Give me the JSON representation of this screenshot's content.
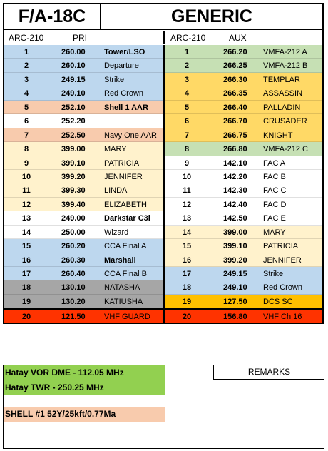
{
  "header": {
    "aircraft": "F/A-18C",
    "title": "GENERIC"
  },
  "pri": {
    "radio": "ARC-210",
    "label": "PRI"
  },
  "aux": {
    "radio": "ARC-210",
    "label": "AUX"
  },
  "pri_rows": [
    {
      "n": "1",
      "freq": "260.00",
      "name": "Tower/LSO",
      "color": "#bdd7ee",
      "bold": true
    },
    {
      "n": "2",
      "freq": "260.10",
      "name": "Departure",
      "color": "#bdd7ee",
      "bold": false
    },
    {
      "n": "3",
      "freq": "249.15",
      "name": "Strike",
      "color": "#bdd7ee",
      "bold": false
    },
    {
      "n": "4",
      "freq": "249.10",
      "name": "Red Crown",
      "color": "#bdd7ee",
      "bold": false
    },
    {
      "n": "5",
      "freq": "252.10",
      "name": "Shell 1 AAR",
      "color": "#f8cbad",
      "bold": true
    },
    {
      "n": "6",
      "freq": "252.20",
      "name": "",
      "color": "#ffffff",
      "bold": false
    },
    {
      "n": "7",
      "freq": "252.50",
      "name": "Navy One AAR",
      "color": "#f8cbad",
      "bold": false
    },
    {
      "n": "8",
      "freq": "399.00",
      "name": "MARY",
      "color": "#fff2cc",
      "bold": false
    },
    {
      "n": "9",
      "freq": "399.10",
      "name": "PATRICIA",
      "color": "#fff2cc",
      "bold": false
    },
    {
      "n": "10",
      "freq": "399.20",
      "name": "JENNIFER",
      "color": "#fff2cc",
      "bold": false
    },
    {
      "n": "11",
      "freq": "399.30",
      "name": "LINDA",
      "color": "#fff2cc",
      "bold": false
    },
    {
      "n": "12",
      "freq": "399.40",
      "name": "ELIZABETH",
      "color": "#fff2cc",
      "bold": false
    },
    {
      "n": "13",
      "freq": "249.00",
      "name": "Darkstar C3i",
      "color": "#ffffff",
      "bold": true
    },
    {
      "n": "14",
      "freq": "250.00",
      "name": "Wizard",
      "color": "#ffffff",
      "bold": false
    },
    {
      "n": "15",
      "freq": "260.20",
      "name": "CCA Final A",
      "color": "#bdd7ee",
      "bold": false
    },
    {
      "n": "16",
      "freq": "260.30",
      "name": "Marshall",
      "color": "#bdd7ee",
      "bold": true
    },
    {
      "n": "17",
      "freq": "260.40",
      "name": "CCA Final B",
      "color": "#bdd7ee",
      "bold": false
    },
    {
      "n": "18",
      "freq": "130.10",
      "name": "NATASHA",
      "color": "#a6a6a6",
      "bold": false
    },
    {
      "n": "19",
      "freq": "130.20",
      "name": "KATIUSHA",
      "color": "#a6a6a6",
      "bold": false
    },
    {
      "n": "20",
      "freq": "121.50",
      "name": "VHF GUARD",
      "color": "#ff3300",
      "bold": false
    }
  ],
  "aux_rows": [
    {
      "n": "1",
      "freq": "266.20",
      "name": "VMFA-212 A",
      "color": "#c6e0b4",
      "bold": false
    },
    {
      "n": "2",
      "freq": "266.25",
      "name": "VMFA-212 B",
      "color": "#c6e0b4",
      "bold": false
    },
    {
      "n": "3",
      "freq": "266.30",
      "name": "TEMPLAR",
      "color": "#ffd966",
      "bold": false
    },
    {
      "n": "4",
      "freq": "266.35",
      "name": "ASSASSIN",
      "color": "#ffd966",
      "bold": false
    },
    {
      "n": "5",
      "freq": "266.40",
      "name": "PALLADIN",
      "color": "#ffd966",
      "bold": false
    },
    {
      "n": "6",
      "freq": "266.70",
      "name": "CRUSADER",
      "color": "#ffd966",
      "bold": false
    },
    {
      "n": "7",
      "freq": "266.75",
      "name": "KNIGHT",
      "color": "#ffd966",
      "bold": false
    },
    {
      "n": "8",
      "freq": "266.80",
      "name": "VMFA-212 C",
      "color": "#c6e0b4",
      "bold": false
    },
    {
      "n": "9",
      "freq": "142.10",
      "name": "FAC A",
      "color": "#ffffff",
      "bold": false
    },
    {
      "n": "10",
      "freq": "142.20",
      "name": "FAC B",
      "color": "#ffffff",
      "bold": false
    },
    {
      "n": "11",
      "freq": "142.30",
      "name": "FAC C",
      "color": "#ffffff",
      "bold": false
    },
    {
      "n": "12",
      "freq": "142.40",
      "name": "FAC D",
      "color": "#ffffff",
      "bold": false
    },
    {
      "n": "13",
      "freq": "142.50",
      "name": "FAC E",
      "color": "#ffffff",
      "bold": false
    },
    {
      "n": "14",
      "freq": "399.00",
      "name": "MARY",
      "color": "#fff2cc",
      "bold": false
    },
    {
      "n": "15",
      "freq": "399.10",
      "name": "PATRICIA",
      "color": "#fff2cc",
      "bold": false
    },
    {
      "n": "16",
      "freq": "399.20",
      "name": "JENNIFER",
      "color": "#fff2cc",
      "bold": false
    },
    {
      "n": "17",
      "freq": "249.15",
      "name": "Strike",
      "color": "#bdd7ee",
      "bold": false
    },
    {
      "n": "18",
      "freq": "249.10",
      "name": "Red Crown",
      "color": "#bdd7ee",
      "bold": false
    },
    {
      "n": "19",
      "freq": "127.50",
      "name": "DCS SC",
      "color": "#ffc000",
      "bold": false
    },
    {
      "n": "20",
      "freq": "156.80",
      "name": "VHF Ch 16",
      "color": "#ff3300",
      "bold": false
    }
  ],
  "notes": [
    {
      "text": "Hatay VOR DME - 112.05 MHz",
      "color": "#92d050"
    },
    {
      "text": "Hatay TWR -  250.25 MHz",
      "color": "#92d050"
    },
    {
      "text": "SHELL #1 52Y/25kft/0.77Ma",
      "color": "#f8cbad"
    }
  ],
  "remarks_label": "REMARKS"
}
